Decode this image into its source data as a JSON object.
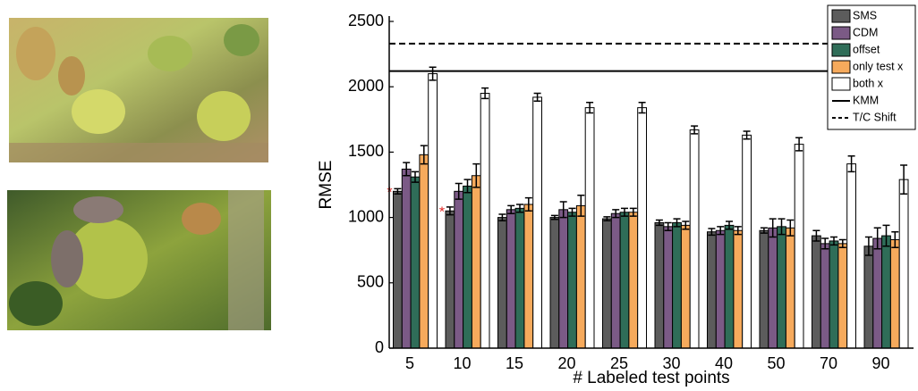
{
  "chart_data": {
    "type": "bar",
    "xlabel": "# Labeled test points",
    "ylabel": "RMSE",
    "categories": [
      "5",
      "10",
      "15",
      "20",
      "25",
      "30",
      "40",
      "50",
      "70",
      "90"
    ],
    "ylim": [
      0,
      2500
    ],
    "yticks": [
      0,
      500,
      1000,
      1500,
      2000,
      2500
    ],
    "series": [
      {
        "name": "SMS",
        "color": "#5c5c5c",
        "values": [
          1200,
          1050,
          1000,
          1000,
          990,
          960,
          890,
          900,
          860,
          780
        ],
        "errors": [
          20,
          30,
          25,
          15,
          15,
          20,
          25,
          20,
          40,
          70
        ]
      },
      {
        "name": "CDM",
        "color": "#7b5a86",
        "values": [
          1370,
          1200,
          1060,
          1060,
          1030,
          930,
          900,
          920,
          800,
          840
        ],
        "errors": [
          50,
          60,
          30,
          60,
          30,
          30,
          30,
          70,
          40,
          80
        ]
      },
      {
        "name": "offset",
        "color": "#2f6d58",
        "values": [
          1310,
          1240,
          1070,
          1040,
          1040,
          960,
          940,
          930,
          820,
          860
        ],
        "errors": [
          40,
          50,
          30,
          30,
          30,
          30,
          30,
          60,
          30,
          80
        ]
      },
      {
        "name": "only test x",
        "color": "#f6aa5c",
        "values": [
          1480,
          1320,
          1100,
          1090,
          1040,
          940,
          900,
          920,
          800,
          830
        ],
        "errors": [
          70,
          90,
          50,
          80,
          30,
          30,
          30,
          60,
          30,
          60
        ]
      },
      {
        "name": "both x",
        "color": "#ffffff",
        "values": [
          2100,
          1950,
          1920,
          1840,
          1840,
          1670,
          1630,
          1560,
          1410,
          1290
        ],
        "errors": [
          50,
          40,
          30,
          40,
          40,
          30,
          30,
          50,
          60,
          110
        ]
      }
    ],
    "lines": [
      {
        "name": "KMM",
        "value": 2120,
        "style": "solid"
      },
      {
        "name": "T/C Shift",
        "value": 2330,
        "style": "dashed"
      }
    ],
    "annotations": [
      {
        "text": "*",
        "category": "5",
        "series": "SMS"
      },
      {
        "text": "*",
        "category": "10",
        "series": "SMS"
      }
    ],
    "legend": "upper right"
  }
}
